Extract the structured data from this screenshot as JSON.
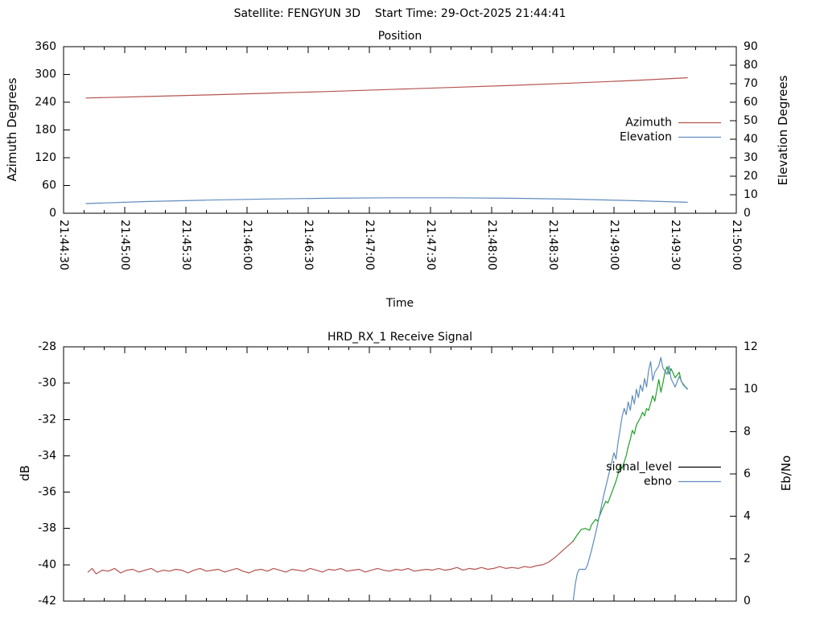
{
  "header": {
    "title": "Satellite: FENGYUN 3D    Start Time: 29-Oct-2025 21:44:41"
  },
  "chart_data": [
    {
      "id": "position",
      "type": "line",
      "title": "Position",
      "xlabel": "Time",
      "ylabel": "Azimuth Degrees",
      "y2label": "Elevation Degrees",
      "y_axis": {
        "lim": [
          0,
          360
        ],
        "step": 60
      },
      "y2_axis": {
        "lim": [
          0,
          90
        ],
        "step": 10
      },
      "x_axis": {
        "range_seconds": [
          0,
          330
        ],
        "major_tick_step_s": 30,
        "minor_tick_step_s": 10,
        "tick_labels": [
          "21:44:30",
          "21:45:00",
          "21:45:30",
          "21:46:00",
          "21:46:30",
          "21:47:00",
          "21:47:30",
          "21:48:00",
          "21:48:30",
          "21:49:00",
          "21:49:30",
          "21:50:00"
        ],
        "labels_visible": true,
        "labels_rotated_90": true
      },
      "legend": [
        {
          "label": "Azimuth",
          "color": "#b45450"
        },
        {
          "label": "Elevation",
          "color": "#5f8cbe"
        }
      ],
      "series": [
        {
          "name": "Azimuth",
          "axis": "y1",
          "color": "#b45450",
          "points": [
            [
              11,
              249
            ],
            [
              40,
              252.2
            ],
            [
              70,
              255.6
            ],
            [
              100,
              259.3
            ],
            [
              130,
              263.2
            ],
            [
              160,
              267.4
            ],
            [
              190,
              271.8
            ],
            [
              220,
              276.4
            ],
            [
              250,
              281.4
            ],
            [
              280,
              287
            ],
            [
              306,
              292.8
            ]
          ]
        },
        {
          "name": "Elevation",
          "axis": "y2",
          "color": "#5f8cbe",
          "points": [
            [
              11,
              5.2
            ],
            [
              40,
              6.3
            ],
            [
              70,
              7.1
            ],
            [
              100,
              7.7
            ],
            [
              130,
              8.1
            ],
            [
              160,
              8.35
            ],
            [
              190,
              8.35
            ],
            [
              220,
              8.1
            ],
            [
              250,
              7.6
            ],
            [
              280,
              6.8
            ],
            [
              306,
              5.9
            ]
          ]
        }
      ]
    },
    {
      "id": "receive_signal",
      "type": "line",
      "title": "HRD_RX_1 Receive Signal",
      "ylabel": "dB",
      "y2label": "Eb/No",
      "y_axis": {
        "lim": [
          -42,
          -28
        ],
        "step": 2
      },
      "y2_axis": {
        "lim": [
          0,
          12
        ],
        "step": 2
      },
      "x_axis": {
        "range_seconds": [
          0,
          330
        ],
        "major_tick_step_s": 30,
        "minor_tick_step_s": 10,
        "tick_labels": [],
        "labels_visible": false,
        "labels_rotated_90": true
      },
      "legend": [
        {
          "label": "signal_level",
          "color": "#000000"
        },
        {
          "label": "ebno",
          "color": "#5f8cbe"
        }
      ],
      "series": [
        {
          "name": "signal_level_pre_lock",
          "axis": "y1",
          "color": "#b45450",
          "points": [
            [
              12,
              -40.4
            ],
            [
              14,
              -40.2
            ],
            [
              16,
              -40.5
            ],
            [
              19,
              -40.3
            ],
            [
              22,
              -40.35
            ],
            [
              25,
              -40.2
            ],
            [
              28,
              -40.45
            ],
            [
              31,
              -40.3
            ],
            [
              34,
              -40.25
            ],
            [
              37,
              -40.4
            ],
            [
              40,
              -40.3
            ],
            [
              43,
              -40.2
            ],
            [
              46,
              -40.4
            ],
            [
              49,
              -40.3
            ],
            [
              52,
              -40.35
            ],
            [
              55,
              -40.25
            ],
            [
              58,
              -40.3
            ],
            [
              61,
              -40.45
            ],
            [
              64,
              -40.3
            ],
            [
              67,
              -40.2
            ],
            [
              70,
              -40.35
            ],
            [
              73,
              -40.3
            ],
            [
              76,
              -40.25
            ],
            [
              79,
              -40.4
            ],
            [
              82,
              -40.3
            ],
            [
              85,
              -40.2
            ],
            [
              88,
              -40.35
            ],
            [
              91,
              -40.45
            ],
            [
              94,
              -40.3
            ],
            [
              97,
              -40.25
            ],
            [
              100,
              -40.35
            ],
            [
              103,
              -40.2
            ],
            [
              106,
              -40.3
            ],
            [
              109,
              -40.4
            ],
            [
              112,
              -40.25
            ],
            [
              115,
              -40.3
            ],
            [
              118,
              -40.35
            ],
            [
              121,
              -40.2
            ],
            [
              124,
              -40.3
            ],
            [
              127,
              -40.4
            ],
            [
              130,
              -40.25
            ],
            [
              133,
              -40.3
            ],
            [
              136,
              -40.2
            ],
            [
              139,
              -40.35
            ],
            [
              142,
              -40.3
            ],
            [
              145,
              -40.25
            ],
            [
              148,
              -40.4
            ],
            [
              151,
              -40.3
            ],
            [
              154,
              -40.2
            ],
            [
              157,
              -40.3
            ],
            [
              160,
              -40.35
            ],
            [
              163,
              -40.25
            ],
            [
              166,
              -40.3
            ],
            [
              169,
              -40.2
            ],
            [
              172,
              -40.35
            ],
            [
              175,
              -40.3
            ],
            [
              178,
              -40.25
            ],
            [
              181,
              -40.3
            ],
            [
              184,
              -40.2
            ],
            [
              187,
              -40.3
            ],
            [
              190,
              -40.25
            ],
            [
              193,
              -40.15
            ],
            [
              196,
              -40.3
            ],
            [
              199,
              -40.2
            ],
            [
              202,
              -40.25
            ],
            [
              205,
              -40.15
            ],
            [
              208,
              -40.25
            ],
            [
              211,
              -40.2
            ],
            [
              214,
              -40.1
            ],
            [
              217,
              -40.2
            ],
            [
              220,
              -40.15
            ],
            [
              223,
              -40.2
            ],
            [
              226,
              -40.1
            ],
            [
              229,
              -40.15
            ],
            [
              232,
              -40.05
            ],
            [
              235,
              -40
            ],
            [
              238,
              -39.85
            ],
            [
              241,
              -39.6
            ],
            [
              244,
              -39.3
            ],
            [
              247,
              -39
            ],
            [
              249,
              -38.8
            ],
            [
              250,
              -38.7
            ]
          ]
        },
        {
          "name": "signal_level_locked",
          "axis": "y1",
          "color": "#1ea128",
          "points": [
            [
              250,
              -38.7
            ],
            [
              252,
              -38.35
            ],
            [
              254,
              -38.05
            ],
            [
              256,
              -38
            ],
            [
              258,
              -38.1
            ],
            [
              259,
              -37.8
            ],
            [
              261,
              -37.5
            ],
            [
              262,
              -37.6
            ],
            [
              264,
              -37
            ],
            [
              266,
              -36.5
            ],
            [
              267,
              -36.6
            ],
            [
              269,
              -36
            ],
            [
              271,
              -35.4
            ],
            [
              272,
              -35
            ],
            [
              273,
              -34.5
            ],
            [
              274,
              -34.7
            ],
            [
              276,
              -34
            ],
            [
              277,
              -33.5
            ],
            [
              278,
              -33.1
            ],
            [
              279,
              -32.6
            ],
            [
              280,
              -32.8
            ],
            [
              281,
              -32.3
            ],
            [
              283,
              -31.9
            ],
            [
              284,
              -31.6
            ],
            [
              285,
              -31.8
            ],
            [
              286,
              -31.4
            ],
            [
              287,
              -31.5
            ],
            [
              288,
              -31.1
            ],
            [
              289,
              -30.7
            ],
            [
              290,
              -31
            ],
            [
              291,
              -30.4
            ],
            [
              292,
              -29.8
            ],
            [
              293,
              -30.5
            ],
            [
              294,
              -30
            ],
            [
              295,
              -29.4
            ],
            [
              296,
              -29.1
            ],
            [
              297,
              -29.5
            ],
            [
              298,
              -29.2
            ],
            [
              300,
              -29.7
            ],
            [
              302,
              -29.4
            ],
            [
              303,
              -29.9
            ],
            [
              305,
              -30.2
            ],
            [
              306,
              -30.3
            ]
          ]
        },
        {
          "name": "ebno",
          "axis": "y2",
          "color": "#5f8cbe",
          "points": [
            [
              250,
              0
            ],
            [
              251,
              0.8
            ],
            [
              252,
              1.3
            ],
            [
              253,
              1.5
            ],
            [
              256,
              1.5
            ],
            [
              257,
              1.7
            ],
            [
              259,
              2.4
            ],
            [
              261,
              3.2
            ],
            [
              263,
              4.1
            ],
            [
              265,
              5
            ],
            [
              267,
              5.8
            ],
            [
              268,
              6.2
            ],
            [
              270,
              7
            ],
            [
              271,
              6.7
            ],
            [
              272,
              7.5
            ],
            [
              273,
              8.1
            ],
            [
              274,
              8.7
            ],
            [
              275,
              9.1
            ],
            [
              276,
              8.8
            ],
            [
              277,
              9.4
            ],
            [
              278,
              9
            ],
            [
              279,
              9.7
            ],
            [
              280,
              9.3
            ],
            [
              281,
              10
            ],
            [
              282,
              9.6
            ],
            [
              283,
              10.2
            ],
            [
              284,
              9.9
            ],
            [
              285,
              10.5
            ],
            [
              286,
              10.1
            ],
            [
              287,
              10.9
            ],
            [
              288,
              11.3
            ],
            [
              289,
              10.4
            ],
            [
              290,
              10.8
            ],
            [
              292,
              11.1
            ],
            [
              293,
              11.5
            ],
            [
              294,
              11
            ],
            [
              296,
              10.7
            ],
            [
              297,
              11.1
            ],
            [
              298,
              10.5
            ],
            [
              300,
              10.1
            ],
            [
              302,
              10.6
            ],
            [
              304,
              10.2
            ],
            [
              306,
              10
            ]
          ]
        }
      ]
    }
  ]
}
